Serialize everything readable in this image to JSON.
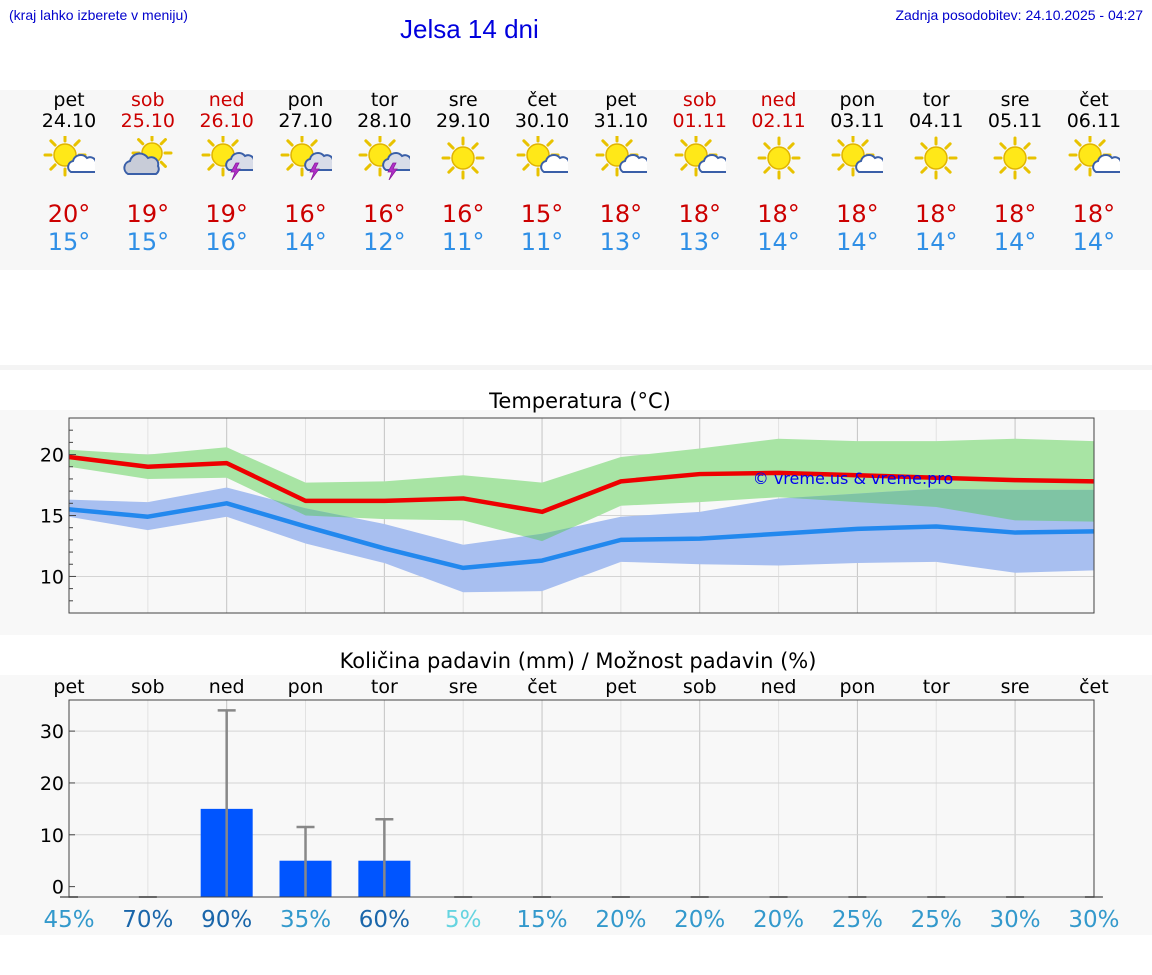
{
  "header": {
    "hint": "(kraj lahko izberete v meniju)",
    "title": "Jelsa 14 dni",
    "updated": "Zadnja posodobitev: 24.10.2025 - 04:27"
  },
  "days": [
    {
      "name": "pet",
      "date": "24.10",
      "icon": "sun-cloud-icon",
      "max": "20°",
      "min": "15°",
      "weekend": false
    },
    {
      "name": "sob",
      "date": "25.10",
      "icon": "cloudy-sun-icon",
      "max": "19°",
      "min": "15°",
      "weekend": true
    },
    {
      "name": "ned",
      "date": "26.10",
      "icon": "sun-thunderstorm-icon",
      "max": "19°",
      "min": "16°",
      "weekend": true
    },
    {
      "name": "pon",
      "date": "27.10",
      "icon": "sun-thunderstorm-icon",
      "max": "16°",
      "min": "14°",
      "weekend": false
    },
    {
      "name": "tor",
      "date": "28.10",
      "icon": "sun-thunderstorm-icon",
      "max": "16°",
      "min": "12°",
      "weekend": false
    },
    {
      "name": "sre",
      "date": "29.10",
      "icon": "sun-icon",
      "max": "16°",
      "min": "11°",
      "weekend": false
    },
    {
      "name": "čet",
      "date": "30.10",
      "icon": "sun-cloud-icon",
      "max": "15°",
      "min": "11°",
      "weekend": false
    },
    {
      "name": "pet",
      "date": "31.10",
      "icon": "sun-cloud-icon",
      "max": "18°",
      "min": "13°",
      "weekend": false
    },
    {
      "name": "sob",
      "date": "01.11",
      "icon": "sun-cloud-icon",
      "max": "18°",
      "min": "13°",
      "weekend": true
    },
    {
      "name": "ned",
      "date": "02.11",
      "icon": "sun-icon",
      "max": "18°",
      "min": "14°",
      "weekend": true
    },
    {
      "name": "pon",
      "date": "03.11",
      "icon": "sun-cloud-icon",
      "max": "18°",
      "min": "14°",
      "weekend": false
    },
    {
      "name": "tor",
      "date": "04.11",
      "icon": "sun-icon",
      "max": "18°",
      "min": "14°",
      "weekend": false
    },
    {
      "name": "sre",
      "date": "05.11",
      "icon": "sun-icon",
      "max": "18°",
      "min": "14°",
      "weekend": false
    },
    {
      "name": "čet",
      "date": "06.11",
      "icon": "sun-cloud-icon",
      "max": "18°",
      "min": "14°",
      "weekend": false
    }
  ],
  "colors": {
    "max_line": "#ee0000",
    "min_line": "#2288ee",
    "max_band": "#a8e4a4",
    "min_band": "#a8bff0",
    "overlap_band": "#7fc4a4",
    "bar": "#0055ff",
    "whisker": "#888888"
  },
  "chart_data": [
    {
      "type": "line",
      "title": "Temperatura (°C)",
      "watermark": "© vreme.us & vreme.pro",
      "categories": [
        "24.10",
        "25.10",
        "26.10",
        "27.10",
        "28.10",
        "29.10",
        "30.10",
        "31.10",
        "01.11",
        "02.11",
        "03.11",
        "04.11",
        "05.11",
        "06.11"
      ],
      "ylim": [
        7,
        23
      ],
      "yticks": [
        10,
        15,
        20
      ],
      "grid": true,
      "series": [
        {
          "values": [
            19.8,
            19.0,
            19.3,
            16.2,
            16.2,
            16.4,
            15.3,
            17.8,
            18.4,
            18.5,
            18.3,
            18.1,
            17.9,
            17.8
          ],
          "band_low": [
            19.0,
            18.0,
            18.1,
            15.0,
            14.7,
            14.6,
            12.9,
            15.8,
            16.1,
            16.5,
            16.1,
            15.7,
            14.6,
            14.5
          ],
          "band_high": [
            20.4,
            20.0,
            20.6,
            17.7,
            17.8,
            18.3,
            17.7,
            19.8,
            20.5,
            21.3,
            21.1,
            21.1,
            21.3,
            21.1
          ]
        },
        {
          "values": [
            15.5,
            14.9,
            16.0,
            14.1,
            12.3,
            10.7,
            11.3,
            13.0,
            13.1,
            13.5,
            13.9,
            14.1,
            13.6,
            13.7
          ],
          "band_low": [
            14.9,
            13.8,
            14.9,
            12.7,
            11.1,
            8.7,
            8.8,
            11.2,
            11.0,
            10.9,
            11.1,
            11.2,
            10.3,
            10.5
          ],
          "band_high": [
            16.3,
            16.1,
            17.3,
            15.6,
            14.3,
            12.6,
            13.5,
            14.9,
            15.3,
            16.4,
            16.8,
            17.2,
            17.1,
            17.1
          ]
        }
      ]
    },
    {
      "type": "bar",
      "title": "Količina padavin (mm) / Možnost padavin (%)",
      "categories": [
        "pet",
        "sob",
        "ned",
        "pon",
        "tor",
        "sre",
        "čet",
        "pet",
        "sob",
        "ned",
        "pon",
        "tor",
        "sre",
        "čet"
      ],
      "values": [
        0,
        0,
        15,
        5,
        5,
        0,
        0,
        0,
        0,
        0,
        0,
        0,
        0,
        0
      ],
      "error_high": [
        0,
        0,
        34,
        11.5,
        13,
        0,
        0,
        0,
        0,
        0,
        0,
        0,
        0,
        0
      ],
      "probability": [
        "45%",
        "70%",
        "90%",
        "35%",
        "60%",
        "5%",
        "15%",
        "20%",
        "20%",
        "20%",
        "25%",
        "25%",
        "30%",
        "30%"
      ],
      "probability_colors": [
        "#3399cc",
        "#1a66aa",
        "#1a66aa",
        "#3399cc",
        "#1a66aa",
        "#66d4e0",
        "#3399cc",
        "#3399cc",
        "#3399cc",
        "#3399cc",
        "#3399cc",
        "#3399cc",
        "#3399cc",
        "#3399cc"
      ],
      "ylim": [
        -2,
        36
      ],
      "yticks": [
        0,
        10,
        20,
        30
      ],
      "grid": true
    }
  ]
}
